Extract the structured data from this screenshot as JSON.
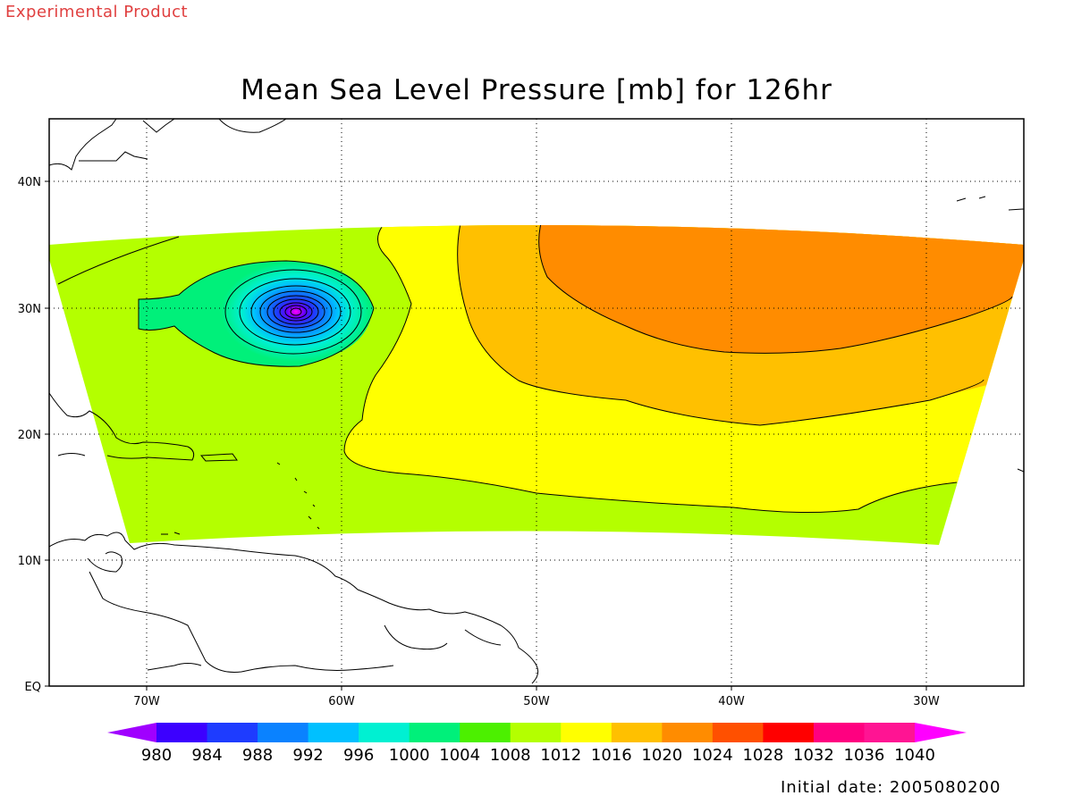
{
  "header": {
    "product_label": "Experimental Product",
    "title": "Mean Sea Level Pressure [mb] for 126hr"
  },
  "footer": {
    "initial_date": "Initial date: 2005080200"
  },
  "map": {
    "lat_labels": [
      "40N",
      "30N",
      "20N",
      "10N",
      "EQ"
    ],
    "lon_labels": [
      "70W",
      "60W",
      "50W",
      "40W",
      "30W"
    ],
    "low_pressure_center": {
      "lon": -62.5,
      "lat": 29.8
    }
  },
  "colorbar": {
    "levels": [
      "980",
      "984",
      "988",
      "992",
      "996",
      "1000",
      "1004",
      "1008",
      "1012",
      "1016",
      "1020",
      "1024",
      "1028",
      "1032",
      "1036",
      "1040"
    ],
    "colors": [
      "#a000ff",
      "#3c00ff",
      "#1e3cff",
      "#0a82ff",
      "#00c0ff",
      "#00f0d2",
      "#00f07a",
      "#4cf000",
      "#b4ff00",
      "#ffff00",
      "#ffc000",
      "#ff8c00",
      "#ff5000",
      "#ff0000",
      "#ff0080",
      "#ff1493",
      "#ff00ff"
    ]
  },
  "pressure_field_colors": {
    "c1004": "#00f07a",
    "c1008": "#b4ff00",
    "c1012": "#ffff00",
    "c1016": "#ffc000",
    "c1020": "#ff8c00"
  }
}
